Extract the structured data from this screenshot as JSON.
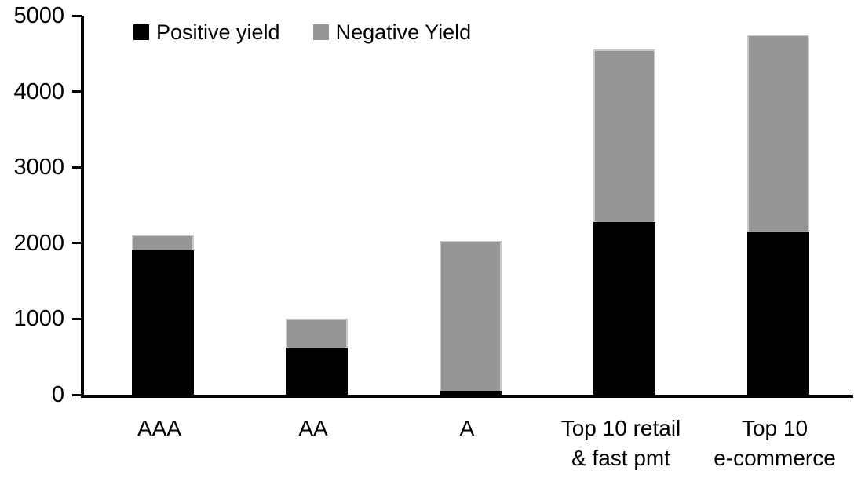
{
  "chart_data": {
    "type": "bar",
    "stacked": true,
    "title": "",
    "xlabel": "",
    "ylabel": "",
    "grid": false,
    "legend_position": "top",
    "ylim": [
      0,
      5000
    ],
    "yticks": [
      0,
      1000,
      2000,
      3000,
      4000,
      5000
    ],
    "categories": [
      {
        "lines": [
          "AAA"
        ]
      },
      {
        "lines": [
          "AA"
        ]
      },
      {
        "lines": [
          "A"
        ]
      },
      {
        "lines": [
          "Top 10 retail",
          "& fast pmt"
        ]
      },
      {
        "lines": [
          "Top 10",
          "e-commerce"
        ]
      }
    ],
    "series": [
      {
        "name": "Positive yield",
        "color": "#000000",
        "values": [
          1900,
          620,
          50,
          2280,
          2150
        ]
      },
      {
        "name": "Negative Yield",
        "color": "#969696",
        "values": [
          210,
          380,
          1980,
          2270,
          2600
        ]
      }
    ]
  },
  "colors": {
    "axis": "#000000",
    "positive": "#000000",
    "negative": "#969696",
    "negative_border": "#c9c9c9",
    "background": "#ffffff"
  }
}
